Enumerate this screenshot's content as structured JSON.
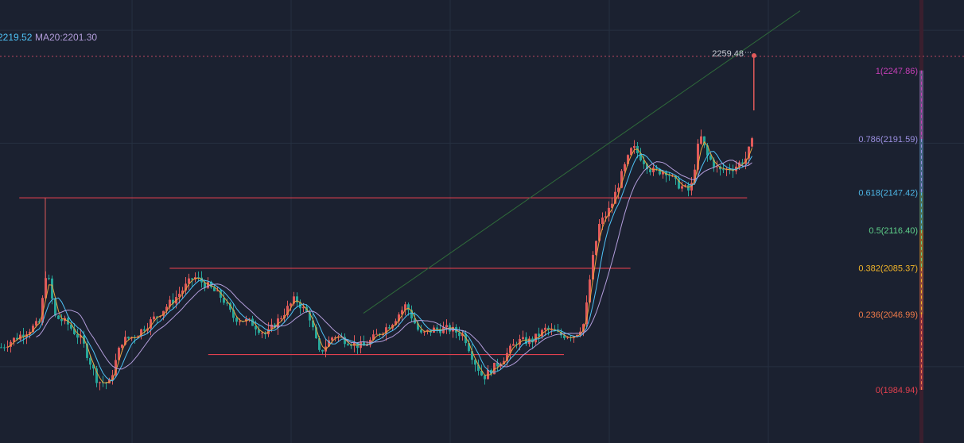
{
  "colors": {
    "background": "#1b2130",
    "grid": "#263041",
    "up": "#e05a5a",
    "down": "#26a69a",
    "ma5": "#e8a33d",
    "ma10": "#4fc3f7",
    "ma20": "#b39ddb",
    "trendline": "#2f6b3a",
    "level_line": "#e0404e",
    "price_dotted": "#b8485e",
    "fib_strip": "#3a1f2e"
  },
  "ma_labels": {
    "ma10_text": "2219.52",
    "ma20_text": "MA20:2201.30"
  },
  "price_marker": {
    "text": "2259.48"
  },
  "chart_data": {
    "type": "candlestick",
    "y_scale": {
      "price_at_row_71": 2259.48,
      "price_at_row_491": 1984.94
    },
    "fib_levels": [
      {
        "label": "1(2247.86)",
        "ratio": 1,
        "price": 2247.86,
        "color": "#c63fb7"
      },
      {
        "label": "0.786(2191.59)",
        "ratio": 0.786,
        "price": 2191.59,
        "color": "#9b8fe0"
      },
      {
        "label": "0.618(2147.42)",
        "ratio": 0.618,
        "price": 2147.42,
        "color": "#4db6e6"
      },
      {
        "label": "0.5(2116.40)",
        "ratio": 0.5,
        "price": 2116.4,
        "color": "#5fd18a"
      },
      {
        "label": "0.382(2085.37)",
        "ratio": 0.382,
        "price": 2085.37,
        "color": "#f0b429"
      },
      {
        "label": "0.236(2046.99)",
        "ratio": 0.236,
        "price": 2046.99,
        "color": "#ef7b4a"
      },
      {
        "label": "0(1984.94)",
        "ratio": 0,
        "price": 1984.94,
        "color": "#e0404e"
      }
    ],
    "horizontal_levels": [
      {
        "price": 2143.0,
        "x_from": 0.02,
        "x_to": 0.775
      },
      {
        "price": 2085.0,
        "x_from": 0.176,
        "x_to": 0.654
      },
      {
        "price": 2014.0,
        "x_from": 0.216,
        "x_to": 0.585
      }
    ],
    "trend_line": {
      "from": {
        "x": 0.377,
        "price": 2048.0
      },
      "to": {
        "x": 0.83,
        "price": 2297.0
      }
    },
    "grid_x": [
      0.137,
      0.302,
      0.467,
      0.632,
      0.797
    ],
    "grid_prices": [
      2281.0,
      2188.0,
      2004.0
    ],
    "path_anchors": [
      [
        0,
        2020
      ],
      [
        0.02,
        2030
      ],
      [
        0.04,
        2040
      ],
      [
        0.047,
        2085
      ],
      [
        0.056,
        2045
      ],
      [
        0.068,
        2040
      ],
      [
        0.084,
        2025
      ],
      [
        0.1,
        1992
      ],
      [
        0.112,
        1990
      ],
      [
        0.125,
        2025
      ],
      [
        0.14,
        2030
      ],
      [
        0.16,
        2045
      ],
      [
        0.18,
        2060
      ],
      [
        0.2,
        2078
      ],
      [
        0.215,
        2070
      ],
      [
        0.23,
        2060
      ],
      [
        0.24,
        2045
      ],
      [
        0.26,
        2040
      ],
      [
        0.275,
        2030
      ],
      [
        0.29,
        2045
      ],
      [
        0.305,
        2060
      ],
      [
        0.32,
        2045
      ],
      [
        0.33,
        2015
      ],
      [
        0.345,
        2030
      ],
      [
        0.36,
        2025
      ],
      [
        0.375,
        2020
      ],
      [
        0.39,
        2030
      ],
      [
        0.405,
        2040
      ],
      [
        0.42,
        2055
      ],
      [
        0.435,
        2030
      ],
      [
        0.45,
        2035
      ],
      [
        0.465,
        2035
      ],
      [
        0.48,
        2030
      ],
      [
        0.49,
        2010
      ],
      [
        0.5,
        1995
      ],
      [
        0.52,
        2010
      ],
      [
        0.535,
        2025
      ],
      [
        0.55,
        2025
      ],
      [
        0.565,
        2035
      ],
      [
        0.58,
        2030
      ],
      [
        0.595,
        2030
      ],
      [
        0.605,
        2040
      ],
      [
        0.612,
        2085
      ],
      [
        0.62,
        2120
      ],
      [
        0.632,
        2135
      ],
      [
        0.645,
        2165
      ],
      [
        0.655,
        2185
      ],
      [
        0.665,
        2175
      ],
      [
        0.675,
        2165
      ],
      [
        0.69,
        2165
      ],
      [
        0.7,
        2155
      ],
      [
        0.715,
        2148
      ],
      [
        0.725,
        2195
      ],
      [
        0.732,
        2178
      ],
      [
        0.745,
        2165
      ],
      [
        0.76,
        2168
      ],
      [
        0.772,
        2175
      ],
      [
        0.782,
        2195
      ],
      [
        0.782,
        2225
      ]
    ]
  }
}
